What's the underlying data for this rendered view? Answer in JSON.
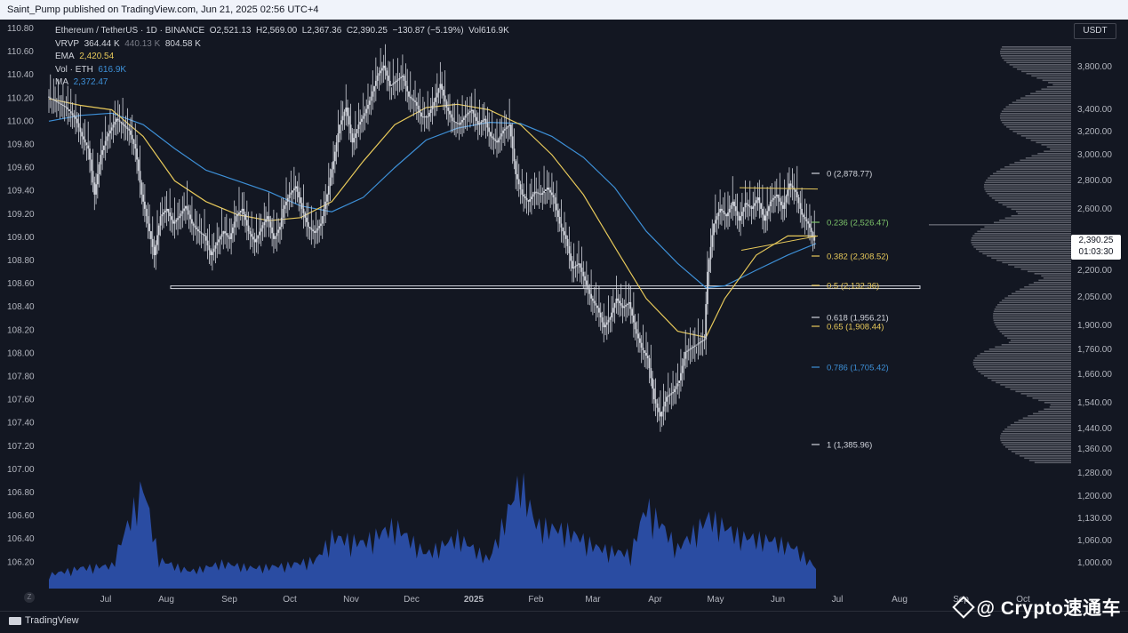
{
  "header": {
    "published": "Saint_Pump published on TradingView.com, Jun 21, 2025 02:56 UTC+4"
  },
  "legend": {
    "symbol": "Ethereum / TetherUS · 1D · BINANCE",
    "open": "O2,521.13",
    "high": "H2,569.00",
    "low": "L2,367.36",
    "close": "C2,390.25",
    "change": "−130.87 (−5.19%)",
    "vol": "Vol616.9K",
    "vrvp_label": "VRVP",
    "vrvp_v1": "364.44 K",
    "vrvp_v2": "440.13 K",
    "vrvp_v3": "804.58 K",
    "ema_label": "EMA",
    "ema_value": "2,420.54",
    "vol_label": "Vol · ETH",
    "vol_value": "616.9K",
    "ma_label": "MA",
    "ma_value": "2,372.47"
  },
  "colors": {
    "bg": "#131722",
    "candle": "#d1d4dc",
    "ema": "#e6c85a",
    "ma": "#3d8fd6",
    "volume": "#2f56b8",
    "fib_green": "#7cc36a",
    "fib_yellow": "#e6c85a",
    "fib_blue": "#3d8fd6",
    "fib_white": "#d1d4dc"
  },
  "footer": {
    "logo": "TradingView",
    "zoom": "Z",
    "watermark": "@ Crypto速通车"
  },
  "right_axis": {
    "currency": "USDT",
    "last_price": "2,390.25",
    "countdown": "01:03:30"
  },
  "chart_data": {
    "type": "candlestick",
    "symbol": "ETHUSDT",
    "timeframe": "1D",
    "x_ticks": [
      "Jul",
      "Aug",
      "Sep",
      "Oct",
      "Nov",
      "Dec",
      "2025",
      "Feb",
      "Mar",
      "Apr",
      "May",
      "Jun",
      "Jul",
      "Aug",
      "Sep",
      "Oct"
    ],
    "left_axis": {
      "ticks": [
        "110.80",
        "110.60",
        "110.40",
        "110.20",
        "110.00",
        "109.80",
        "109.60",
        "109.40",
        "109.20",
        "109.00",
        "108.80",
        "108.60",
        "108.40",
        "108.20",
        "108.00",
        "107.80",
        "107.60",
        "107.40",
        "107.20",
        "107.00",
        "106.80",
        "106.60",
        "106.40",
        "106.20"
      ]
    },
    "right_axis": {
      "ticks": [
        "3,800.00",
        "3,400.00",
        "3,200.00",
        "3,000.00",
        "2,800.00",
        "2,600.00",
        "2,390.25",
        "2,200.00",
        "2,050.00",
        "1,900.00",
        "1,760.00",
        "1,660.00",
        "1,540.00",
        "1,440.00",
        "1,360.00",
        "1,280.00",
        "1,200.00",
        "1,130.00",
        "1,060.00",
        "1,000.00"
      ]
    },
    "fib_levels": [
      {
        "ratio": "0",
        "label": "0 (2,878.77)",
        "value": 2878.77
      },
      {
        "ratio": "0.236",
        "label": "0.236 (2,526.47)",
        "value": 2526.47
      },
      {
        "ratio": "0.382",
        "label": "0.382 (2,308.52)",
        "value": 2308.52
      },
      {
        "ratio": "0.5",
        "label": "0.5 (2,132.36)",
        "value": 2132.36
      },
      {
        "ratio": "0.618",
        "label": "0.618 (1,956.21)",
        "value": 1956.21
      },
      {
        "ratio": "0.65",
        "label": "0.65 (1,908.44)",
        "value": 1908.44
      },
      {
        "ratio": "0.786",
        "label": "0.786 (1,705.42)",
        "value": 1705.42
      },
      {
        "ratio": "1",
        "label": "1 (1,385.96)",
        "value": 1385.96
      }
    ],
    "support_level": 2132.36,
    "close_series": [
      [
        0,
        3500
      ],
      [
        6,
        3450
      ],
      [
        12,
        3400
      ],
      [
        18,
        3300
      ],
      [
        22,
        3150
      ],
      [
        26,
        3050
      ],
      [
        30,
        2700
      ],
      [
        34,
        3000
      ],
      [
        38,
        3150
      ],
      [
        44,
        3300
      ],
      [
        48,
        3250
      ],
      [
        52,
        3200
      ],
      [
        56,
        3050
      ],
      [
        60,
        2700
      ],
      [
        64,
        2500
      ],
      [
        68,
        2300
      ],
      [
        72,
        2550
      ],
      [
        76,
        2600
      ],
      [
        80,
        2500
      ],
      [
        84,
        2550
      ],
      [
        88,
        2620
      ],
      [
        92,
        2500
      ],
      [
        96,
        2450
      ],
      [
        100,
        2420
      ],
      [
        104,
        2300
      ],
      [
        108,
        2380
      ],
      [
        112,
        2450
      ],
      [
        116,
        2400
      ],
      [
        120,
        2550
      ],
      [
        124,
        2600
      ],
      [
        128,
        2450
      ],
      [
        132,
        2380
      ],
      [
        136,
        2470
      ],
      [
        140,
        2550
      ],
      [
        144,
        2400
      ],
      [
        148,
        2480
      ],
      [
        150,
        2600
      ],
      [
        154,
        2700
      ],
      [
        158,
        2760
      ],
      [
        162,
        2600
      ],
      [
        166,
        2480
      ],
      [
        170,
        2440
      ],
      [
        174,
        2500
      ],
      [
        178,
        2700
      ],
      [
        182,
        2950
      ],
      [
        186,
        3250
      ],
      [
        190,
        3400
      ],
      [
        194,
        3100
      ],
      [
        198,
        3250
      ],
      [
        202,
        3350
      ],
      [
        206,
        3500
      ],
      [
        210,
        3700
      ],
      [
        214,
        3800
      ],
      [
        218,
        3600
      ],
      [
        222,
        3650
      ],
      [
        226,
        3700
      ],
      [
        230,
        3500
      ],
      [
        234,
        3450
      ],
      [
        238,
        3320
      ],
      [
        242,
        3320
      ],
      [
        246,
        3450
      ],
      [
        250,
        3620
      ],
      [
        254,
        3400
      ],
      [
        258,
        3280
      ],
      [
        262,
        3250
      ],
      [
        266,
        3330
      ],
      [
        270,
        3380
      ],
      [
        274,
        3250
      ],
      [
        278,
        3300
      ],
      [
        282,
        3150
      ],
      [
        286,
        3100
      ],
      [
        290,
        3200
      ],
      [
        294,
        3250
      ],
      [
        298,
        2850
      ],
      [
        302,
        2700
      ],
      [
        306,
        2650
      ],
      [
        310,
        2720
      ],
      [
        314,
        2700
      ],
      [
        318,
        2750
      ],
      [
        322,
        2680
      ],
      [
        326,
        2500
      ],
      [
        330,
        2400
      ],
      [
        334,
        2220
      ],
      [
        338,
        2250
      ],
      [
        342,
        2150
      ],
      [
        346,
        2050
      ],
      [
        350,
        2000
      ],
      [
        354,
        1900
      ],
      [
        358,
        1950
      ],
      [
        362,
        2050
      ],
      [
        366,
        2000
      ],
      [
        370,
        2030
      ],
      [
        374,
        1890
      ],
      [
        378,
        1800
      ],
      [
        382,
        1750
      ],
      [
        386,
        1570
      ],
      [
        390,
        1500
      ],
      [
        394,
        1580
      ],
      [
        398,
        1600
      ],
      [
        402,
        1650
      ],
      [
        406,
        1780
      ],
      [
        410,
        1800
      ],
      [
        414,
        1820
      ],
      [
        418,
        1840
      ],
      [
        420,
        2200
      ],
      [
        424,
        2500
      ],
      [
        428,
        2600
      ],
      [
        432,
        2550
      ],
      [
        436,
        2650
      ],
      [
        440,
        2520
      ],
      [
        444,
        2640
      ],
      [
        448,
        2600
      ],
      [
        452,
        2680
      ],
      [
        456,
        2520
      ],
      [
        460,
        2650
      ],
      [
        464,
        2700
      ],
      [
        468,
        2600
      ],
      [
        472,
        2780
      ],
      [
        476,
        2720
      ],
      [
        480,
        2560
      ],
      [
        484,
        2500
      ],
      [
        488,
        2390
      ]
    ],
    "ema_series": [
      [
        0,
        3480
      ],
      [
        20,
        3420
      ],
      [
        40,
        3380
      ],
      [
        60,
        3150
      ],
      [
        80,
        2800
      ],
      [
        100,
        2650
      ],
      [
        120,
        2560
      ],
      [
        140,
        2520
      ],
      [
        160,
        2540
      ],
      [
        180,
        2650
      ],
      [
        200,
        2950
      ],
      [
        220,
        3250
      ],
      [
        240,
        3400
      ],
      [
        260,
        3430
      ],
      [
        280,
        3380
      ],
      [
        300,
        3250
      ],
      [
        320,
        3000
      ],
      [
        340,
        2700
      ],
      [
        360,
        2350
      ],
      [
        380,
        2050
      ],
      [
        400,
        1880
      ],
      [
        418,
        1850
      ],
      [
        430,
        2050
      ],
      [
        450,
        2300
      ],
      [
        470,
        2420
      ],
      [
        488,
        2420
      ]
    ],
    "ma_series": [
      [
        0,
        3280
      ],
      [
        20,
        3330
      ],
      [
        40,
        3350
      ],
      [
        60,
        3250
      ],
      [
        80,
        3050
      ],
      [
        100,
        2880
      ],
      [
        120,
        2800
      ],
      [
        140,
        2720
      ],
      [
        160,
        2620
      ],
      [
        180,
        2580
      ],
      [
        200,
        2680
      ],
      [
        220,
        2900
      ],
      [
        240,
        3120
      ],
      [
        260,
        3220
      ],
      [
        280,
        3270
      ],
      [
        300,
        3260
      ],
      [
        320,
        3150
      ],
      [
        340,
        2980
      ],
      [
        360,
        2750
      ],
      [
        380,
        2450
      ],
      [
        400,
        2250
      ],
      [
        418,
        2110
      ],
      [
        430,
        2120
      ],
      [
        450,
        2210
      ],
      [
        470,
        2300
      ],
      [
        488,
        2372
      ]
    ],
    "volume_series": [
      [
        0,
        0.12
      ],
      [
        20,
        0.18
      ],
      [
        40,
        0.2
      ],
      [
        60,
        0.9
      ],
      [
        70,
        0.25
      ],
      [
        90,
        0.15
      ],
      [
        110,
        0.22
      ],
      [
        130,
        0.18
      ],
      [
        150,
        0.2
      ],
      [
        170,
        0.25
      ],
      [
        180,
        0.45
      ],
      [
        200,
        0.4
      ],
      [
        220,
        0.55
      ],
      [
        240,
        0.3
      ],
      [
        260,
        0.45
      ],
      [
        280,
        0.25
      ],
      [
        300,
        0.95
      ],
      [
        310,
        0.55
      ],
      [
        330,
        0.5
      ],
      [
        350,
        0.35
      ],
      [
        370,
        0.3
      ],
      [
        380,
        0.72
      ],
      [
        390,
        0.55
      ],
      [
        400,
        0.35
      ],
      [
        420,
        0.62
      ],
      [
        440,
        0.45
      ],
      [
        460,
        0.42
      ],
      [
        475,
        0.35
      ],
      [
        488,
        0.18
      ]
    ],
    "volume_profile": "horizontal histogram on right edge (grey)",
    "grid": false,
    "xlabel": "",
    "ylabel": ""
  }
}
